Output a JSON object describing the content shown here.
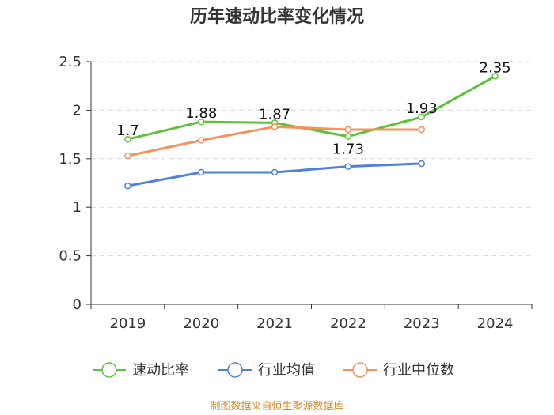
{
  "chart_data": {
    "type": "line",
    "title": "历年速动比率变化情况",
    "categories": [
      "2019",
      "2020",
      "2021",
      "2022",
      "2023",
      "2024"
    ],
    "ylim": [
      0,
      2.5
    ],
    "yticks": [
      "0",
      "0.5",
      "1",
      "1.5",
      "2",
      "2.5"
    ],
    "ytick_values": [
      0,
      0.5,
      1,
      1.5,
      2,
      2.5
    ],
    "grid": true,
    "legend_position": "bottom",
    "series": [
      {
        "name": "速动比率",
        "color": "#5cc23a",
        "values": [
          1.7,
          1.88,
          1.87,
          1.73,
          1.93,
          2.35
        ],
        "labels": [
          "1.7",
          "1.88",
          "1.87",
          "1.73",
          "1.93",
          "2.35"
        ]
      },
      {
        "name": "行业均值",
        "color": "#4f80db",
        "values": [
          1.22,
          1.36,
          1.36,
          1.42,
          1.45,
          null
        ]
      },
      {
        "name": "行业中位数",
        "color": "#f5925c",
        "values": [
          1.53,
          1.69,
          1.83,
          1.8,
          1.8,
          null
        ]
      }
    ]
  },
  "footer": {
    "source": "制图数据来自恒生聚源数据库"
  }
}
